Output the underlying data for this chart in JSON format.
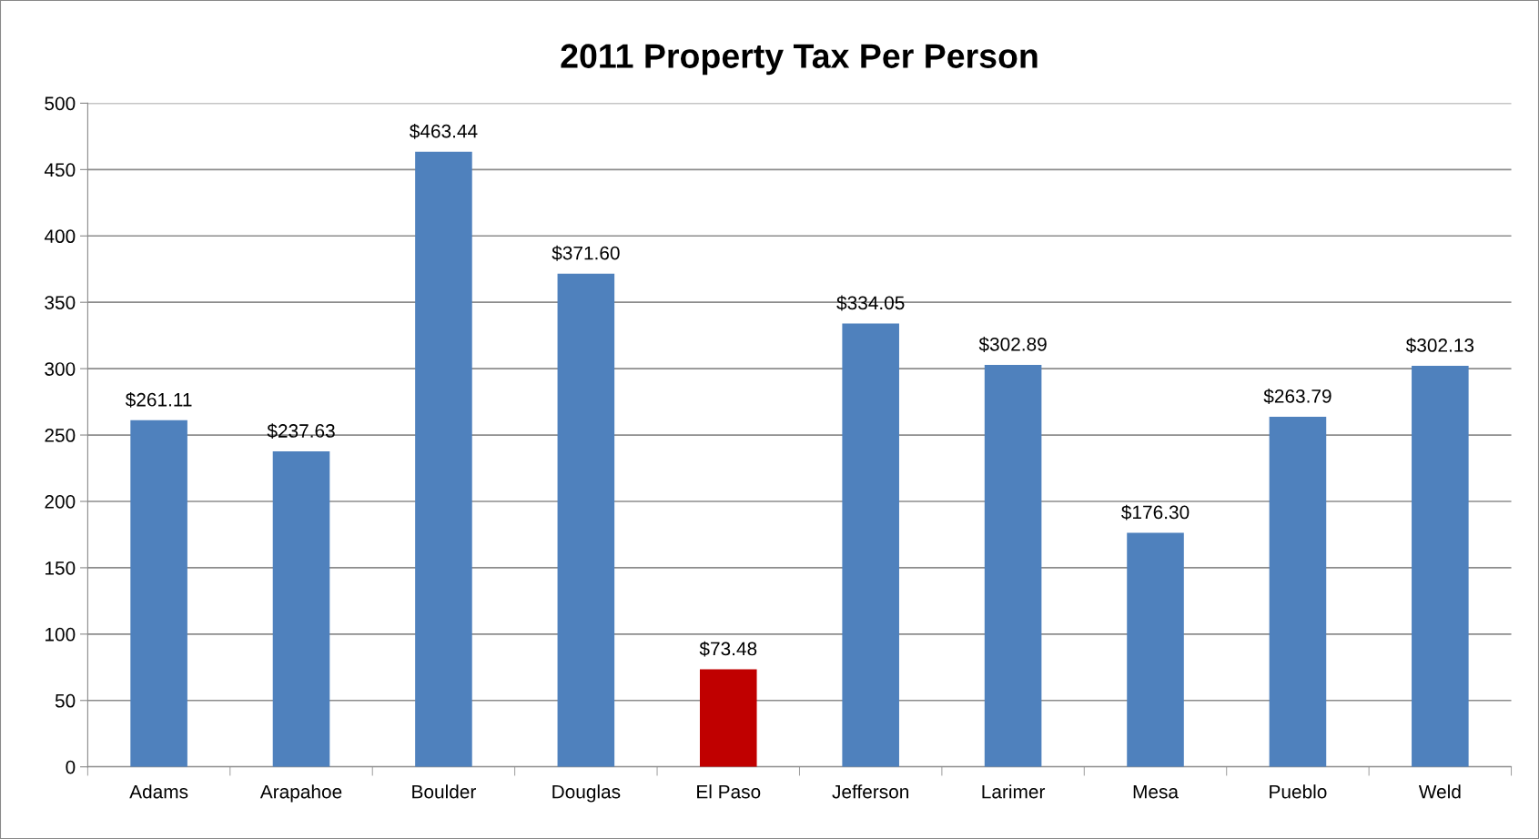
{
  "chart_data": {
    "type": "bar",
    "title": "2011 Property Tax Per Person",
    "categories": [
      "Adams",
      "Arapahoe",
      "Boulder",
      "Douglas",
      "El Paso",
      "Jefferson",
      "Larimer",
      "Mesa",
      "Pueblo",
      "Weld"
    ],
    "values": [
      261.11,
      237.63,
      463.44,
      371.6,
      73.48,
      334.05,
      302.89,
      176.3,
      263.79,
      302.13
    ],
    "colors": [
      "#4f81bd",
      "#4f81bd",
      "#4f81bd",
      "#4f81bd",
      "#c00000",
      "#4f81bd",
      "#4f81bd",
      "#4f81bd",
      "#4f81bd",
      "#4f81bd"
    ],
    "value_labels": [
      "$261.11",
      "$237.63",
      "$463.44",
      "$371.60",
      "$73.48",
      "$334.05",
      "$302.89",
      "$176.30",
      "$263.79",
      "$302.13"
    ],
    "ylim": [
      0,
      500
    ],
    "yticks": [
      0,
      50,
      100,
      150,
      200,
      250,
      300,
      350,
      400,
      450,
      500
    ],
    "grid": "y"
  }
}
